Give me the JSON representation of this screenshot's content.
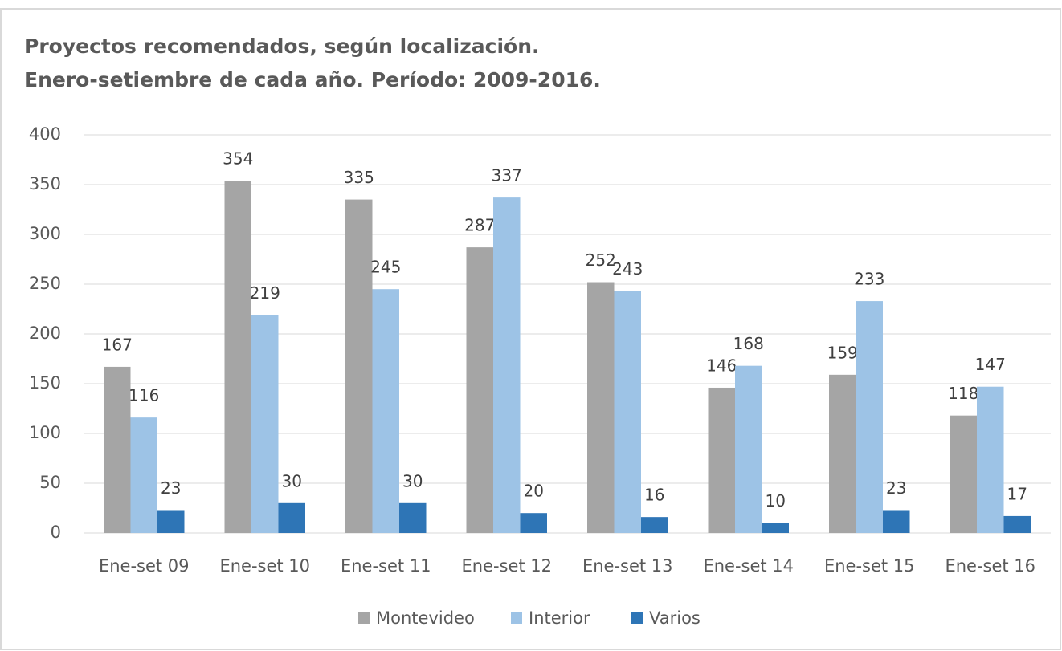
{
  "chart_data": {
    "type": "bar",
    "title": "Proyectos recomendados, según localización.",
    "subtitle": "Enero-setiembre de cada año. Período: 2009-2016.",
    "categories": [
      "Ene-set 09",
      "Ene-set 10",
      "Ene-set 11",
      "Ene-set 12",
      "Ene-set 13",
      "Ene-set 14",
      "Ene-set 15",
      "Ene-set 16"
    ],
    "series": [
      {
        "name": "Montevideo",
        "color": "#a5a5a5",
        "values": [
          167,
          354,
          335,
          287,
          252,
          146,
          159,
          118
        ]
      },
      {
        "name": "Interior",
        "color": "#9dc3e6",
        "values": [
          116,
          219,
          245,
          337,
          243,
          168,
          233,
          147
        ]
      },
      {
        "name": "Varios",
        "color": "#2e75b6",
        "values": [
          23,
          30,
          30,
          20,
          16,
          10,
          23,
          17
        ]
      }
    ],
    "ylim": [
      0,
      400
    ],
    "yticks": [
      0,
      50,
      100,
      150,
      200,
      250,
      300,
      350,
      400
    ],
    "grid": true,
    "legend": "bottom"
  }
}
